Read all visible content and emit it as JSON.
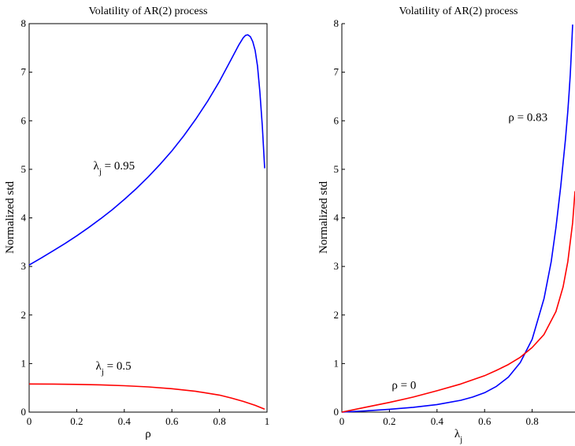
{
  "chart_data": [
    {
      "type": "line",
      "title": "Volatility of AR(2) process",
      "xlabel": "ρ",
      "ylabel": "Normalized std",
      "xlim": [
        0,
        1
      ],
      "ylim": [
        0,
        8
      ],
      "xticks": [
        0,
        0.2,
        0.4,
        0.6,
        0.8,
        1
      ],
      "xtick_labels": [
        "0",
        "0.2",
        "0.4",
        "0.6",
        "0.8",
        "1"
      ],
      "yticks": [
        0,
        1,
        2,
        3,
        4,
        5,
        6,
        7,
        8
      ],
      "ytick_labels": [
        "0",
        "1",
        "2",
        "3",
        "4",
        "5",
        "6",
        "7",
        "8"
      ],
      "grid": false,
      "series": [
        {
          "color": "#0000ff",
          "x": [
            0,
            0.05,
            0.1,
            0.15,
            0.2,
            0.25,
            0.3,
            0.35,
            0.4,
            0.45,
            0.5,
            0.55,
            0.6,
            0.65,
            0.7,
            0.75,
            0.8,
            0.85,
            0.88,
            0.9,
            0.91,
            0.92,
            0.93,
            0.94,
            0.95,
            0.96,
            0.97,
            0.98,
            0.99
          ],
          "y": [
            3.03,
            3.17,
            3.32,
            3.47,
            3.63,
            3.8,
            3.98,
            4.17,
            4.38,
            4.6,
            4.84,
            5.1,
            5.38,
            5.69,
            6.03,
            6.4,
            6.81,
            7.27,
            7.55,
            7.71,
            7.76,
            7.77,
            7.73,
            7.63,
            7.45,
            7.13,
            6.6,
            5.9,
            5.02
          ]
        },
        {
          "color": "#ff0000",
          "x": [
            0,
            0.1,
            0.2,
            0.3,
            0.4,
            0.5,
            0.6,
            0.7,
            0.8,
            0.85,
            0.9,
            0.95,
            0.99
          ],
          "y": [
            0.58,
            0.578,
            0.572,
            0.561,
            0.544,
            0.519,
            0.482,
            0.428,
            0.35,
            0.29,
            0.22,
            0.14,
            0.06
          ]
        }
      ],
      "annotations": [
        {
          "base": "λ",
          "sub": "j",
          "rest": " = 0.95",
          "x": 0.27,
          "y": 5.0
        },
        {
          "base": "λ",
          "sub": "j",
          "rest": " = 0.5",
          "x": 0.28,
          "y": 0.88
        }
      ]
    },
    {
      "type": "line",
      "title": "Volatility of AR(2) process",
      "xlabel": "λ",
      "xlabel_sub": "j",
      "ylabel": "Normalized std",
      "xlim": [
        0,
        0.98
      ],
      "ylim": [
        0,
        8
      ],
      "xticks": [
        0,
        0.2,
        0.4,
        0.6,
        0.8
      ],
      "xtick_labels": [
        "0",
        "0.2",
        "0.4",
        "0.6",
        "0.8"
      ],
      "yticks": [
        0,
        1,
        2,
        3,
        4,
        5,
        6,
        7,
        8
      ],
      "ytick_labels": [
        "0",
        "1",
        "2",
        "3",
        "4",
        "5",
        "6",
        "7",
        "8"
      ],
      "grid": false,
      "series": [
        {
          "color": "#0000ff",
          "x": [
            0,
            0.1,
            0.2,
            0.3,
            0.4,
            0.5,
            0.55,
            0.6,
            0.65,
            0.7,
            0.75,
            0.8,
            0.85,
            0.88,
            0.9,
            0.92,
            0.94,
            0.95,
            0.955,
            0.96,
            0.965,
            0.97
          ],
          "y": [
            0.0,
            0.026,
            0.058,
            0.099,
            0.156,
            0.244,
            0.31,
            0.4,
            0.53,
            0.72,
            1.02,
            1.5,
            2.34,
            3.1,
            3.8,
            4.65,
            5.62,
            6.2,
            6.55,
            6.95,
            7.45,
            7.98
          ]
        },
        {
          "color": "#ff0000",
          "x": [
            0,
            0.1,
            0.2,
            0.3,
            0.4,
            0.5,
            0.6,
            0.65,
            0.7,
            0.75,
            0.8,
            0.85,
            0.9,
            0.93,
            0.95,
            0.97,
            0.98
          ],
          "y": [
            0.0,
            0.1,
            0.2,
            0.31,
            0.44,
            0.58,
            0.75,
            0.86,
            0.98,
            1.13,
            1.33,
            1.6,
            2.07,
            2.58,
            3.1,
            3.9,
            4.55
          ]
        }
      ],
      "annotations": [
        {
          "base": "ρ",
          "sub": "",
          "rest": " = 0.83",
          "x": 0.7,
          "y": 6.0
        },
        {
          "base": "ρ",
          "sub": "",
          "rest": " = 0",
          "x": 0.21,
          "y": 0.48
        }
      ]
    }
  ]
}
